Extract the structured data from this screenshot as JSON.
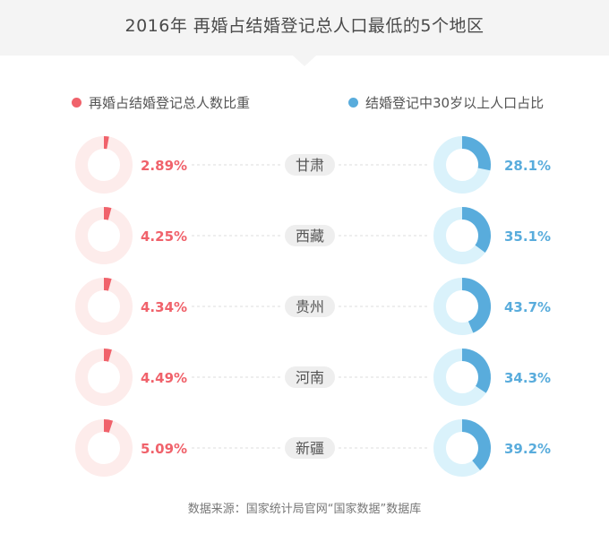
{
  "title": "2016年 再婚占结婚登记总人口最低的5个地区",
  "legend": {
    "left": "再婚占结婚登记总人数比重",
    "right": "结婚登记中30岁以上人口占比"
  },
  "colors": {
    "remarriage": "#f0626b",
    "remarriage_track": "#fdeceb",
    "over30": "#59acdc",
    "over30_track": "#daf2fb",
    "region_pill": "#eeeeee"
  },
  "chart_data": {
    "type": "pie",
    "categories": [
      "甘肃",
      "西藏",
      "贵州",
      "河南",
      "新疆"
    ],
    "series": [
      {
        "name": "再婚占结婚登记总人数比重",
        "values": [
          2.89,
          4.25,
          4.34,
          4.49,
          5.09
        ],
        "labels": [
          "2.89%",
          "4.25%",
          "4.34%",
          "4.49%",
          "5.09%"
        ]
      },
      {
        "name": "结婚登记中30岁以上人口占比",
        "values": [
          28.1,
          35.1,
          43.7,
          34.3,
          39.2
        ],
        "labels": [
          "28.1%",
          "35.1%",
          "43.7%",
          "34.3%",
          "39.2%"
        ]
      }
    ]
  },
  "source": "数据来源：国家统计局官网“国家数据”数据库"
}
